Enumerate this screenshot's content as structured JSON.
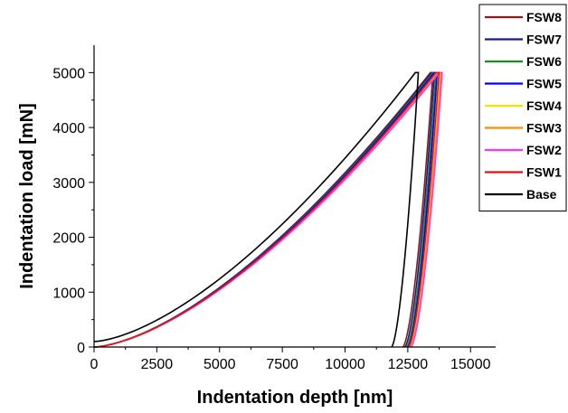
{
  "chart_data": {
    "type": "line",
    "xlabel": "Indentation depth [nm]",
    "ylabel": "Indentation load [mN]",
    "xlim": [
      0,
      16000
    ],
    "ylim": [
      0,
      5500
    ],
    "xticks": [
      0,
      2500,
      5000,
      7500,
      10000,
      12500,
      15000
    ],
    "yticks": [
      0,
      1000,
      2000,
      3000,
      4000,
      5000
    ],
    "xtick_labels": [
      "0",
      "2500",
      "5000",
      "7500",
      "10000",
      "12500",
      "15000"
    ],
    "ytick_labels": [
      "0",
      "1000",
      "2000",
      "3000",
      "4000",
      "5000"
    ],
    "grid": false,
    "legend_position": "top-right",
    "series": [
      {
        "name": "FSW8",
        "color": "#8B1A1A",
        "max_depth": 13400,
        "hold_depth": 13500,
        "final_depth": 12300,
        "max_load": 5000,
        "loading_exponent": 1.55
      },
      {
        "name": "FSW7",
        "color": "#1A1A8B",
        "max_depth": 13450,
        "hold_depth": 13560,
        "final_depth": 12380,
        "max_load": 5000,
        "loading_exponent": 1.55
      },
      {
        "name": "FSW6",
        "color": "#1E8B1E",
        "max_depth": 13500,
        "hold_depth": 13620,
        "final_depth": 12450,
        "max_load": 5000,
        "loading_exponent": 1.55
      },
      {
        "name": "FSW5",
        "color": "#0000FF",
        "max_depth": 13550,
        "hold_depth": 13670,
        "final_depth": 12500,
        "max_load": 5000,
        "loading_exponent": 1.55
      },
      {
        "name": "FSW4",
        "color": "#E8E800",
        "max_depth": 13650,
        "hold_depth": 13770,
        "final_depth": 12560,
        "max_load": 5000,
        "loading_exponent": 1.55
      },
      {
        "name": "FSW3",
        "color": "#FF8C00",
        "max_depth": 13700,
        "hold_depth": 13820,
        "final_depth": 12600,
        "max_load": 5000,
        "loading_exponent": 1.55
      },
      {
        "name": "FSW2",
        "color": "#FF33FF",
        "max_depth": 13750,
        "hold_depth": 13870,
        "final_depth": 12620,
        "max_load": 5000,
        "loading_exponent": 1.55
      },
      {
        "name": "FSW1",
        "color": "#E81010",
        "max_depth": 13620,
        "hold_depth": 13740,
        "final_depth": 12520,
        "max_load": 5000,
        "loading_exponent": 1.55
      },
      {
        "name": "Base",
        "color": "#000000",
        "max_depth": 12800,
        "hold_depth": 12920,
        "final_depth": 11850,
        "max_load": 5000,
        "loading_exponent": 1.55,
        "initial_load": 100
      }
    ]
  }
}
